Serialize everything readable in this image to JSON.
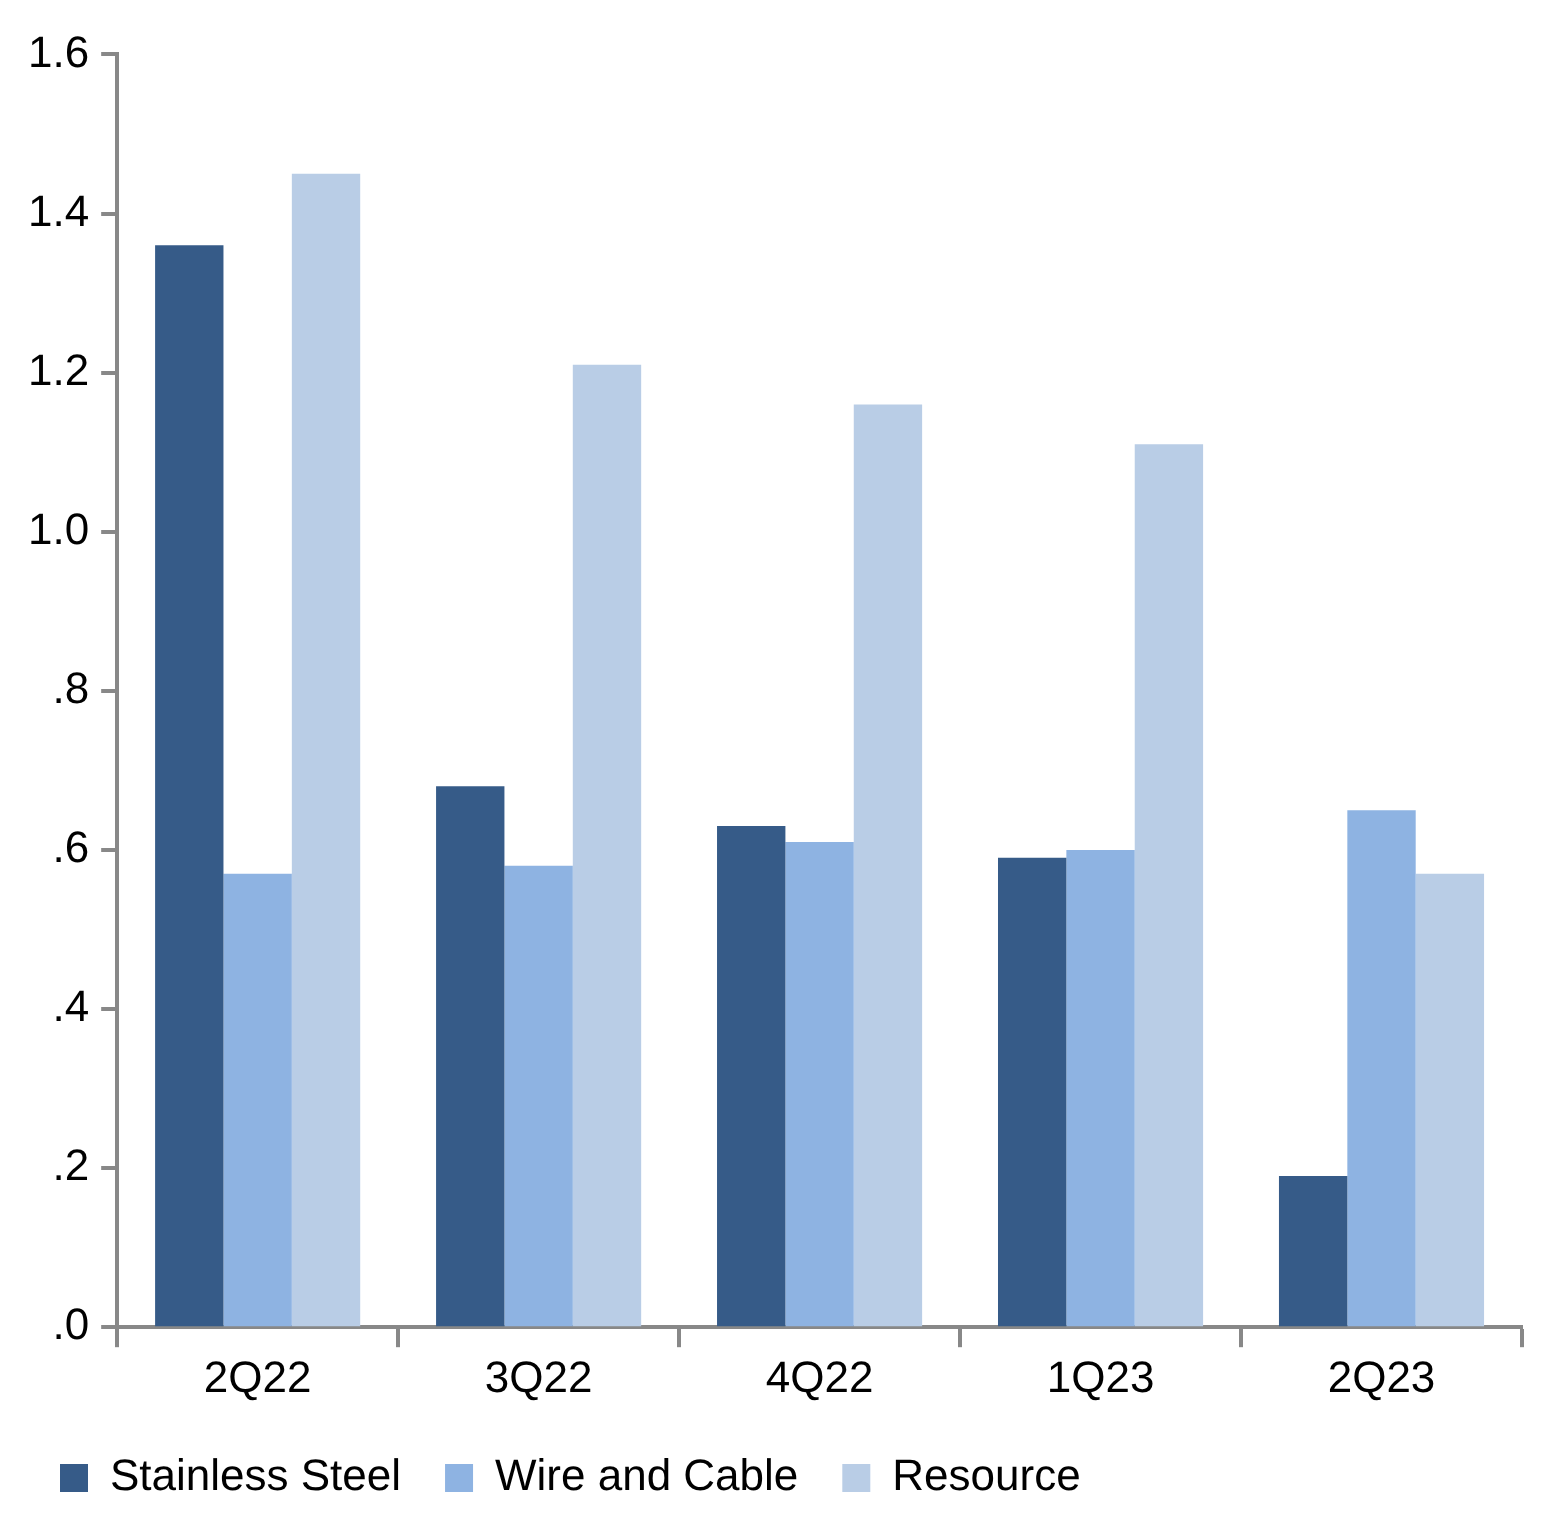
{
  "chart_data": {
    "type": "bar",
    "categories": [
      "2Q22",
      "3Q22",
      "4Q22",
      "1Q23",
      "2Q23"
    ],
    "series": [
      {
        "name": "Stainless Steel",
        "color": "#365b88",
        "values": [
          1.36,
          0.68,
          0.63,
          0.59,
          0.19
        ]
      },
      {
        "name": "Wire and Cable",
        "color": "#8eb3e2",
        "values": [
          0.57,
          0.58,
          0.61,
          0.6,
          0.65
        ]
      },
      {
        "name": "Resource",
        "color": "#b9cde6",
        "values": [
          1.45,
          1.21,
          1.16,
          1.11,
          0.57
        ]
      }
    ],
    "ylim": [
      0,
      1.6
    ],
    "yticks": [
      {
        "value": 0,
        "label": ".0"
      },
      {
        "value": 0.2,
        "label": ".2"
      },
      {
        "value": 0.4,
        "label": ".4"
      },
      {
        "value": 0.6,
        "label": ".6"
      },
      {
        "value": 0.8,
        "label": ".8"
      },
      {
        "value": 1,
        "label": "1.0"
      },
      {
        "value": 1.2,
        "label": "1.2"
      },
      {
        "value": 1.4,
        "label": "1.4"
      },
      {
        "value": 1.6,
        "label": "1.6"
      }
    ],
    "grid": false,
    "legend": "bottom"
  }
}
